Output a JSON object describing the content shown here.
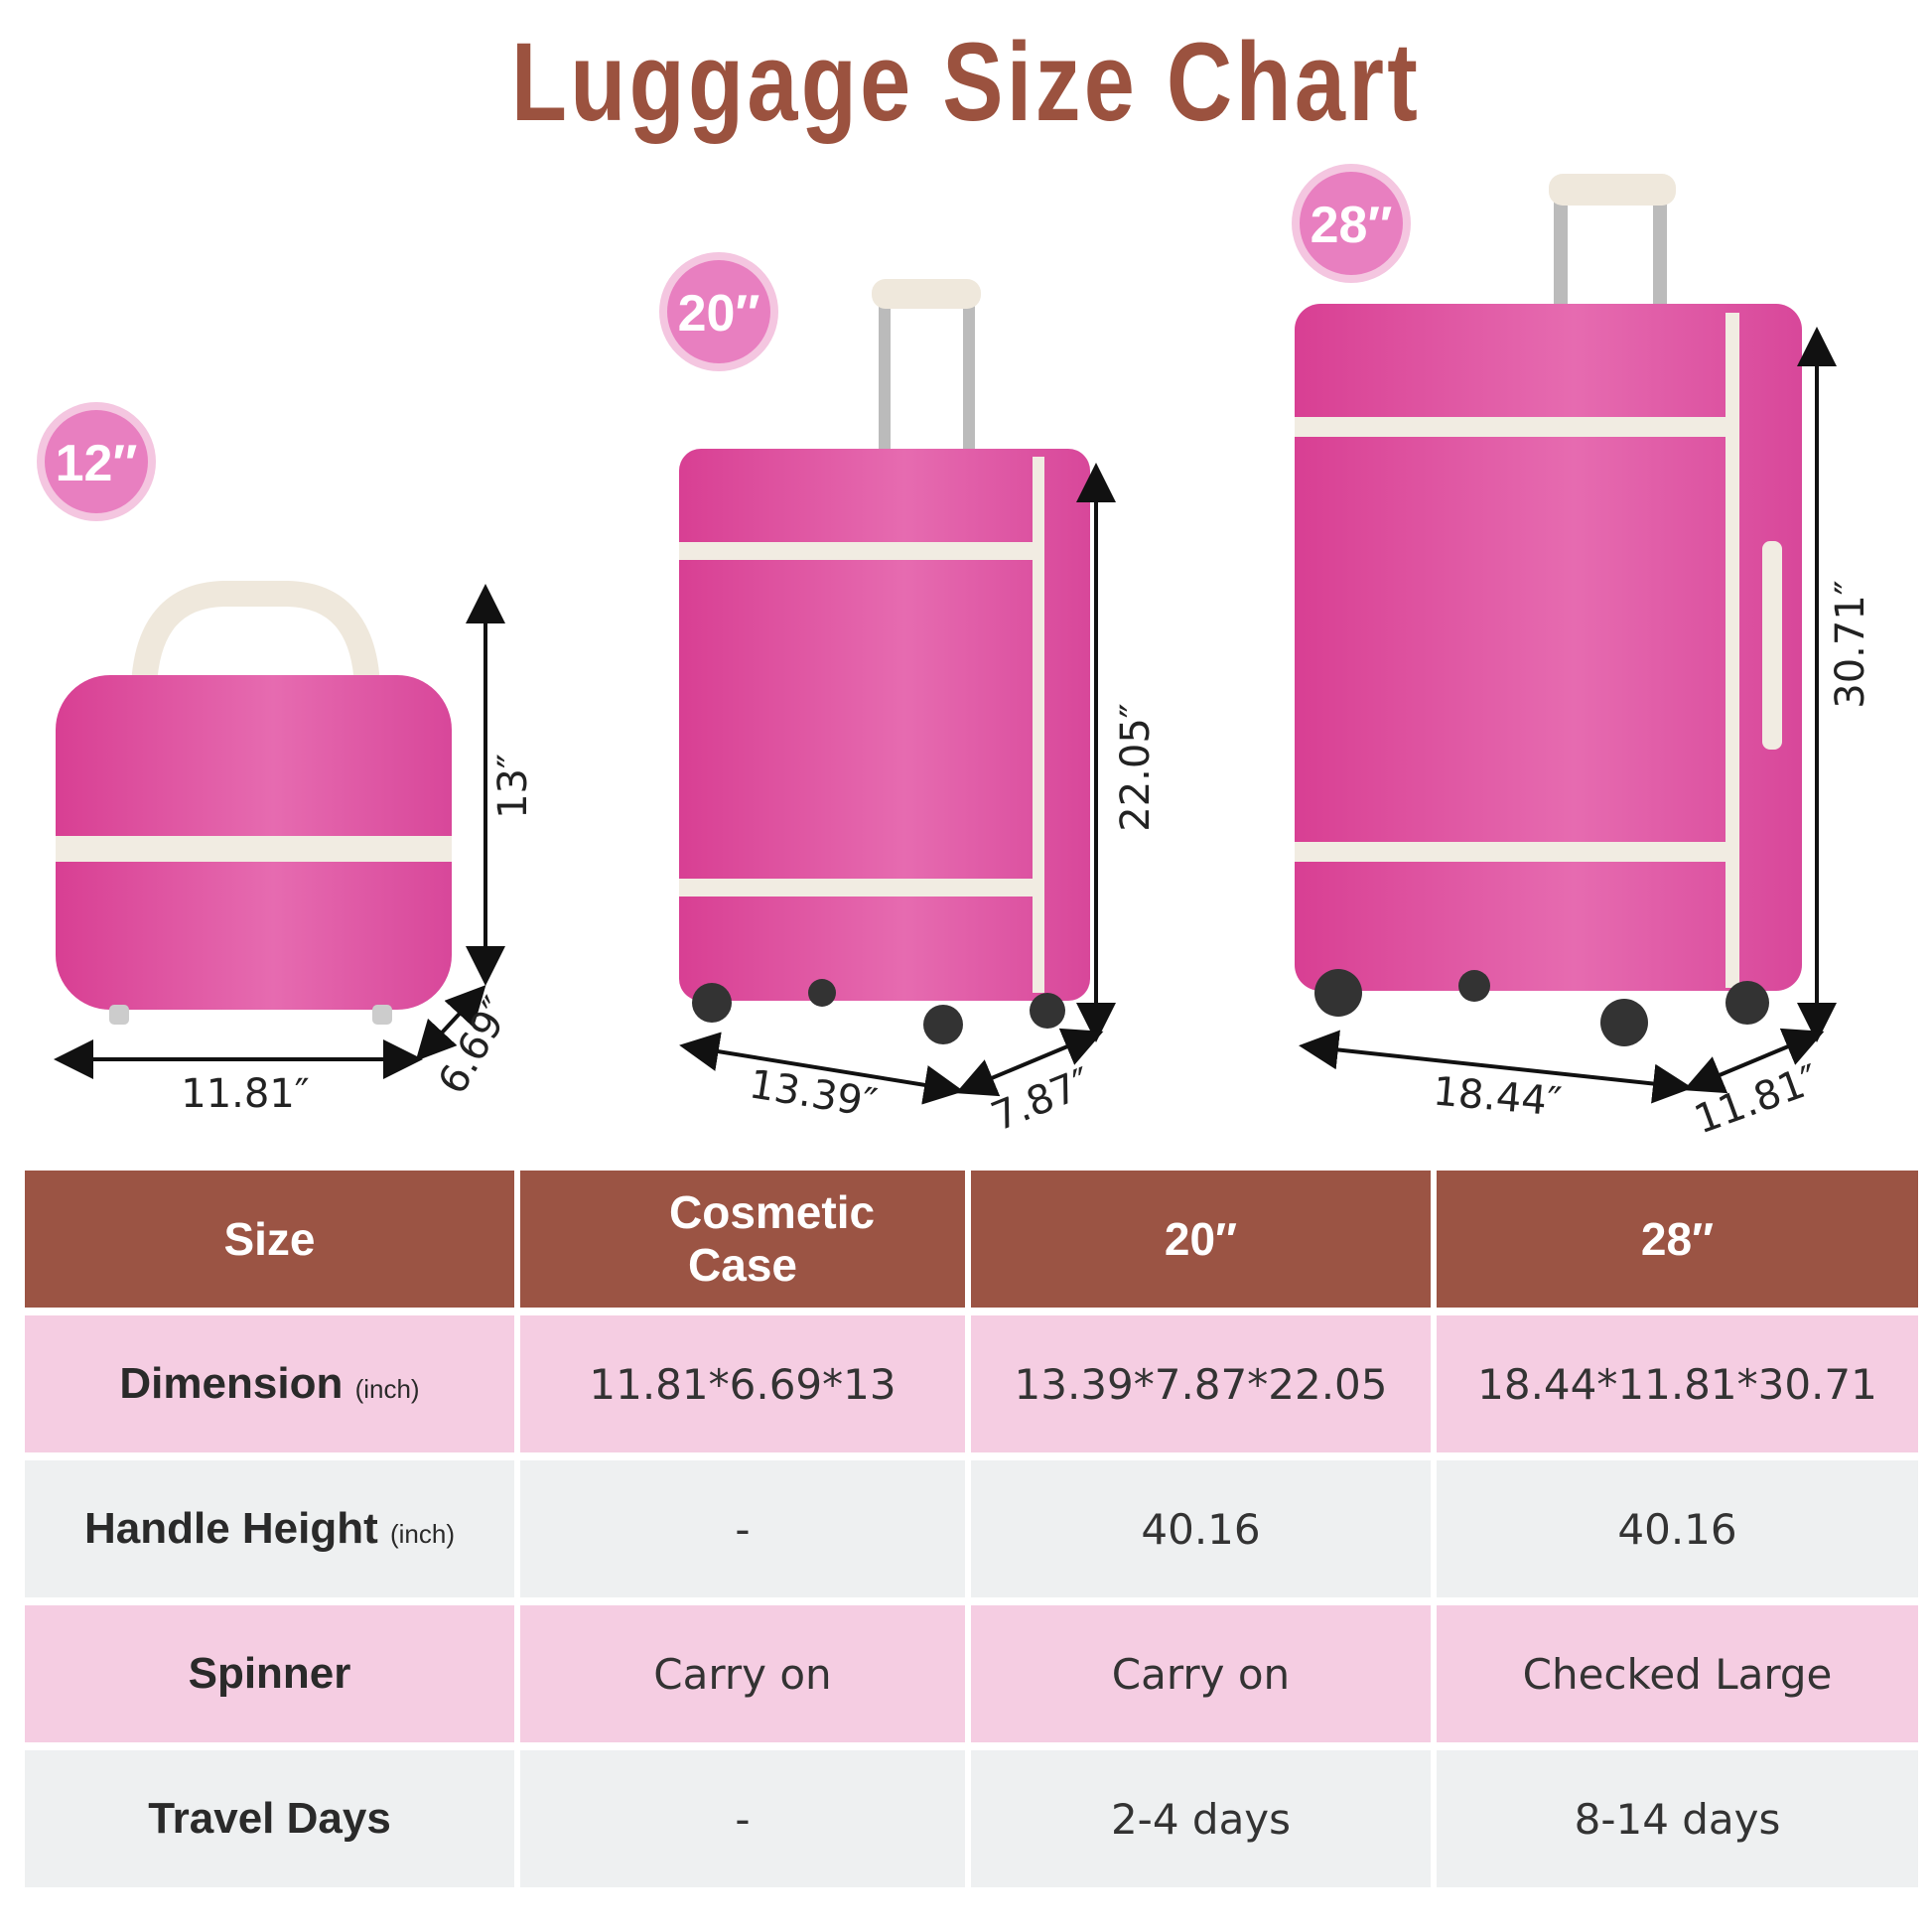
{
  "title": "Luggage Size Chart",
  "colors": {
    "title": "#9b523f",
    "luggage": "#e0529f",
    "trim": "#f1ece2",
    "header": "#9b5444",
    "row_pink": "#f5cde2",
    "row_grey": "#eef0f1",
    "badge": "#e87fc0"
  },
  "badges": [
    "12″",
    "20″",
    "28″"
  ],
  "dimensions": {
    "cosmetic": {
      "height": "13″",
      "width": "11.81″",
      "depth": "6.69″"
    },
    "medium": {
      "height": "22.05″",
      "width": "13.39″",
      "depth": "7.87″"
    },
    "large": {
      "height": "30.71″",
      "width": "18.44″",
      "depth": "11.81″"
    }
  },
  "table": {
    "headers": [
      "Size",
      "Cosmetic Case",
      "20″",
      "28″"
    ],
    "rows": [
      {
        "label": "Dimension",
        "unit": "(inch)",
        "values": [
          "11.81*6.69*13",
          "13.39*7.87*22.05",
          "18.44*11.81*30.71"
        ]
      },
      {
        "label": "Handle Height",
        "unit": "(inch)",
        "values": [
          "-",
          "40.16",
          "40.16"
        ]
      },
      {
        "label": "Spinner",
        "unit": "",
        "values": [
          "Carry on",
          "Carry on",
          "Checked Large"
        ]
      },
      {
        "label": "Travel Days",
        "unit": "",
        "values": [
          "-",
          "2-4 days",
          "8-14 days"
        ]
      }
    ]
  }
}
